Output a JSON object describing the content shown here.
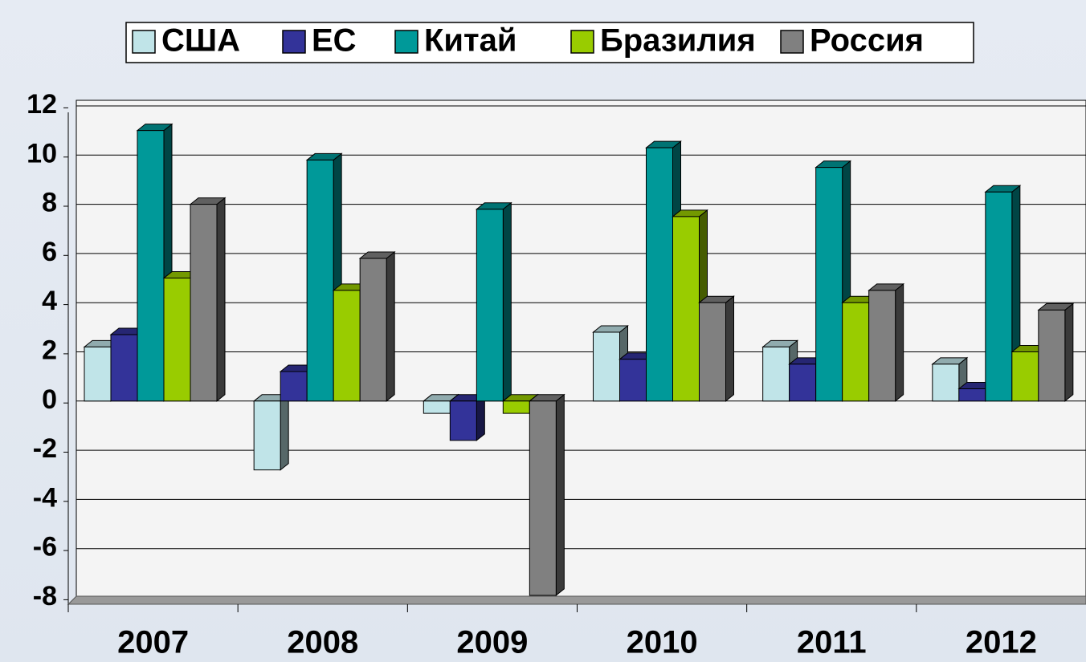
{
  "chart_data": {
    "type": "bar3d",
    "categories": [
      "2007",
      "2008",
      "2009",
      "2010",
      "2011",
      "2012"
    ],
    "series": [
      {
        "name": "США",
        "color": "#c0e4e8",
        "values": [
          2.2,
          -2.8,
          -0.5,
          2.8,
          2.2,
          1.5
        ]
      },
      {
        "name": "ЕС",
        "color": "#333399",
        "values": [
          2.7,
          1.2,
          -1.6,
          1.7,
          1.5,
          0.5
        ]
      },
      {
        "name": "Китай",
        "color": "#009999",
        "values": [
          11.0,
          9.8,
          7.8,
          10.3,
          9.5,
          8.5
        ]
      },
      {
        "name": "Бразилия",
        "color": "#99cc00",
        "values": [
          5.0,
          4.5,
          -0.5,
          7.5,
          4.0,
          2.0
        ]
      },
      {
        "name": "Россия",
        "color": "#808080",
        "values": [
          8.0,
          5.8,
          -7.9,
          4.0,
          4.5,
          3.7
        ]
      }
    ],
    "ylim": [
      -8,
      12
    ],
    "yticks": [
      -8,
      -6,
      -4,
      -2,
      0,
      2,
      4,
      6,
      8,
      10,
      12
    ],
    "grid": true,
    "legend": "top"
  }
}
